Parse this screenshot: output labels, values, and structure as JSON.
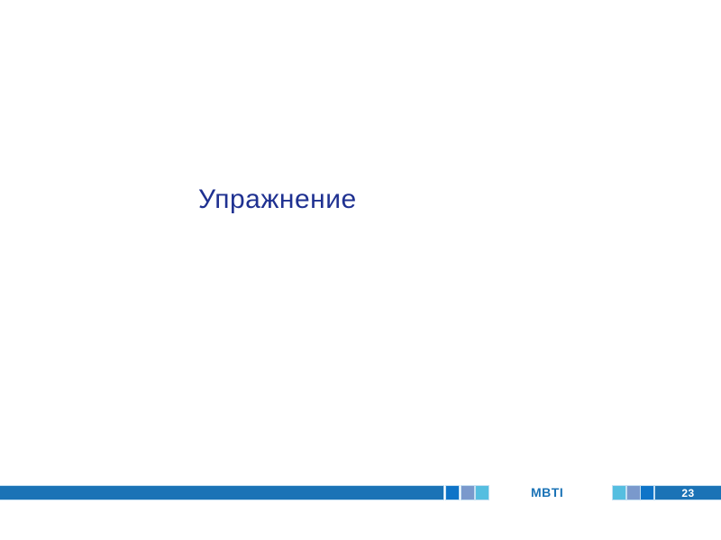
{
  "slide": {
    "title": "Упражнение",
    "footer": {
      "brand": "MBTI",
      "page_number": "23"
    },
    "colors": {
      "title": "#1F3191",
      "bar": "#1B73B6",
      "square_bright": "#0E74C8",
      "square_slate": "#7A99CC",
      "square_sky": "#55BEE0",
      "outline": "#C3DFF2",
      "page_text": "#FFFFFF"
    }
  }
}
